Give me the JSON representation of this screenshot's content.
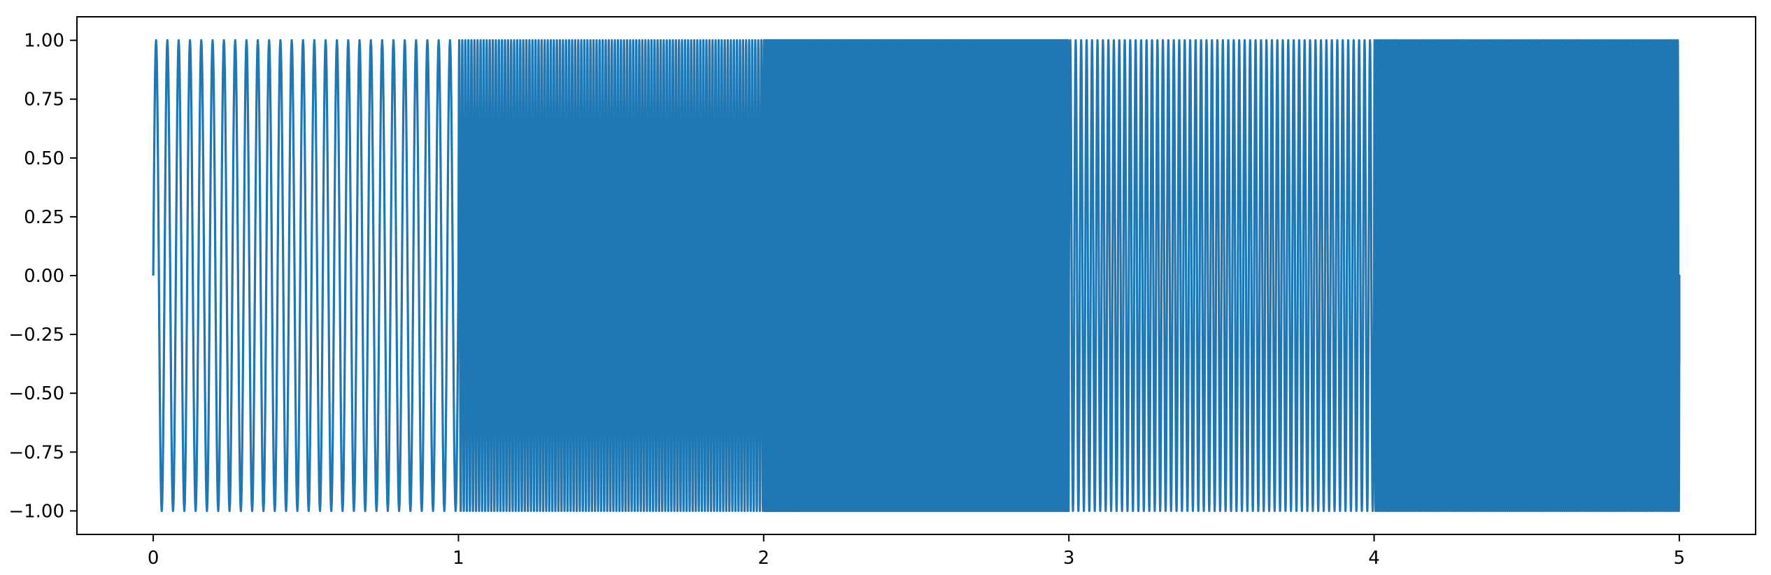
{
  "chart_data": {
    "type": "line",
    "title": "",
    "xlabel": "",
    "ylabel": "",
    "xlim": [
      -0.25,
      5.25
    ],
    "ylim": [
      -1.1,
      1.1
    ],
    "x_ticks": [
      0,
      1,
      2,
      3,
      4,
      5
    ],
    "x_tick_labels": [
      "0",
      "1",
      "2",
      "3",
      "4",
      "5"
    ],
    "y_ticks": [
      1.0,
      0.75,
      0.5,
      0.25,
      0.0,
      -0.25,
      -0.5,
      -0.75,
      -1.0
    ],
    "y_tick_labels": [
      "1.00",
      "0.75",
      "0.50",
      "0.25",
      "0.00",
      "−0.25",
      "−0.50",
      "−0.75",
      "−1.00"
    ],
    "grid": false,
    "legend": "none",
    "series": [
      {
        "color": "#1f77b4",
        "signal": "sin",
        "amplitude": 1.0,
        "segments": [
          {
            "x_start": 0,
            "x_end": 1,
            "frequency_hz": 27
          },
          {
            "x_start": 1,
            "x_end": 2,
            "frequency_hz": 100
          },
          {
            "x_start": 2,
            "x_end": 3,
            "frequency_hz": 235
          },
          {
            "x_start": 3,
            "x_end": 4,
            "frequency_hz": 56
          },
          {
            "x_start": 4,
            "x_end": 5,
            "frequency_hz": 155
          }
        ],
        "x_end": 5.0,
        "y_end": -0.37
      }
    ]
  }
}
